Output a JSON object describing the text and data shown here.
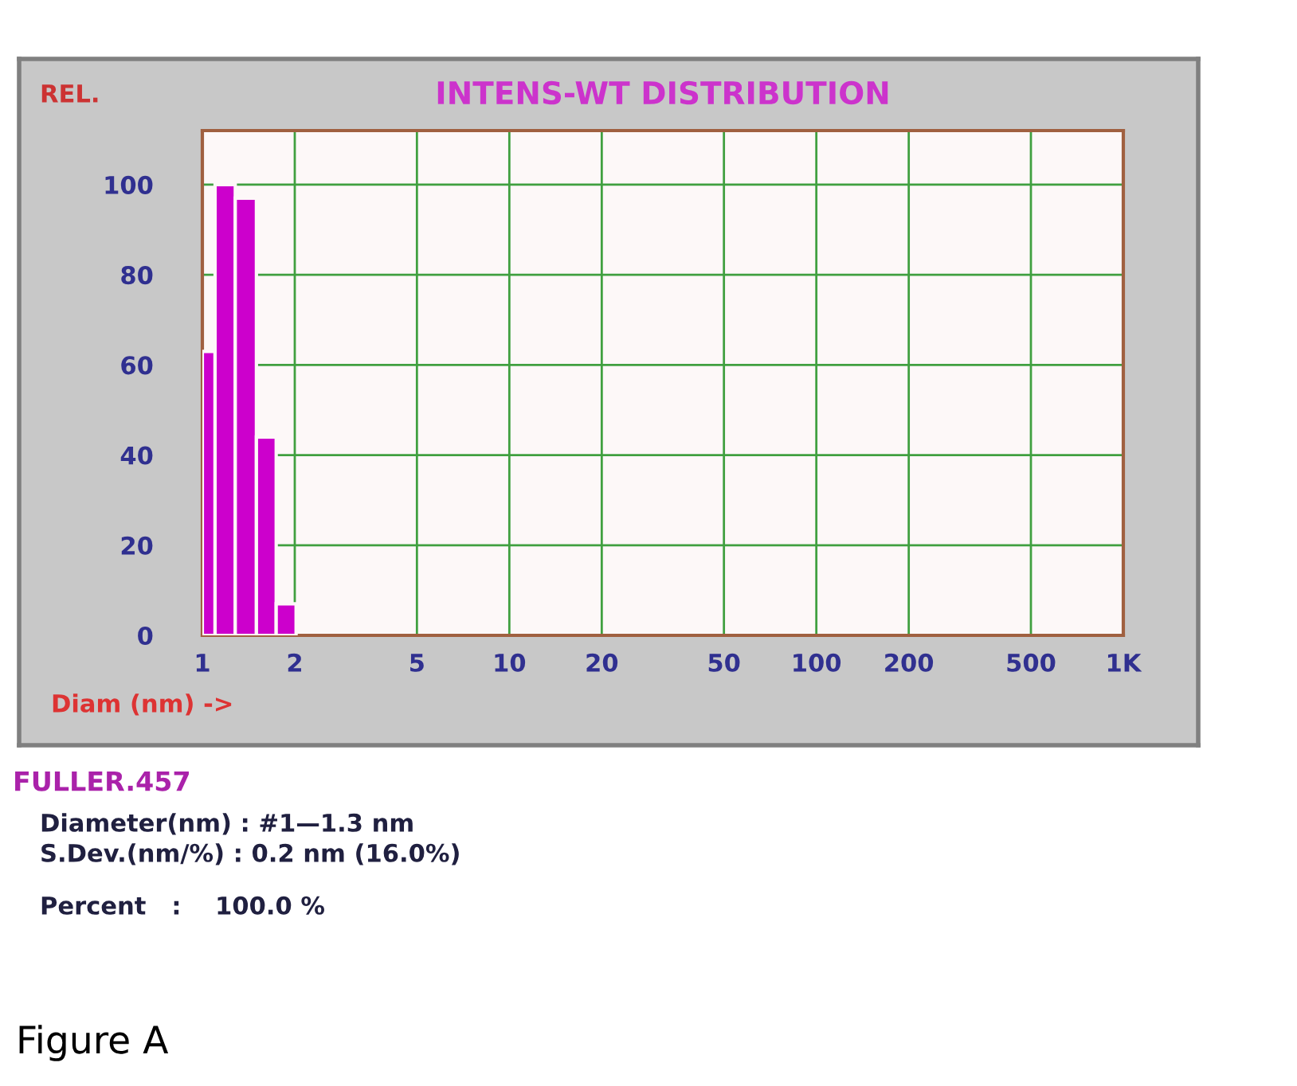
{
  "chart_data": {
    "type": "histogram",
    "title": "INTENS-WT DISTRIBUTION",
    "ylabel": "REL.",
    "xlabel": "Diam (nm) ->",
    "bins": [
      1.0,
      1.1,
      1.28,
      1.5,
      1.74,
      2.02
    ],
    "values": [
      63,
      100,
      97,
      44,
      7
    ],
    "color": "#cc00cc",
    "log": "x",
    "xlim": [
      1,
      1000
    ],
    "xticks": [
      1,
      2,
      5,
      10,
      20,
      50,
      100,
      200,
      500,
      {
        "value": 1000,
        "label": "1K"
      }
    ],
    "ylim": [
      0,
      112
    ],
    "yticks": [
      0,
      20,
      40,
      60,
      80,
      100
    ],
    "grid": true,
    "annotations": [
      "FULLER.457",
      "Diameter(nm) : #1—1.3 nm",
      "S.Dev.(nm/%) : 0.2 nm (16.0%)",
      "Percent   :    100.0 %",
      "Figure A"
    ]
  }
}
